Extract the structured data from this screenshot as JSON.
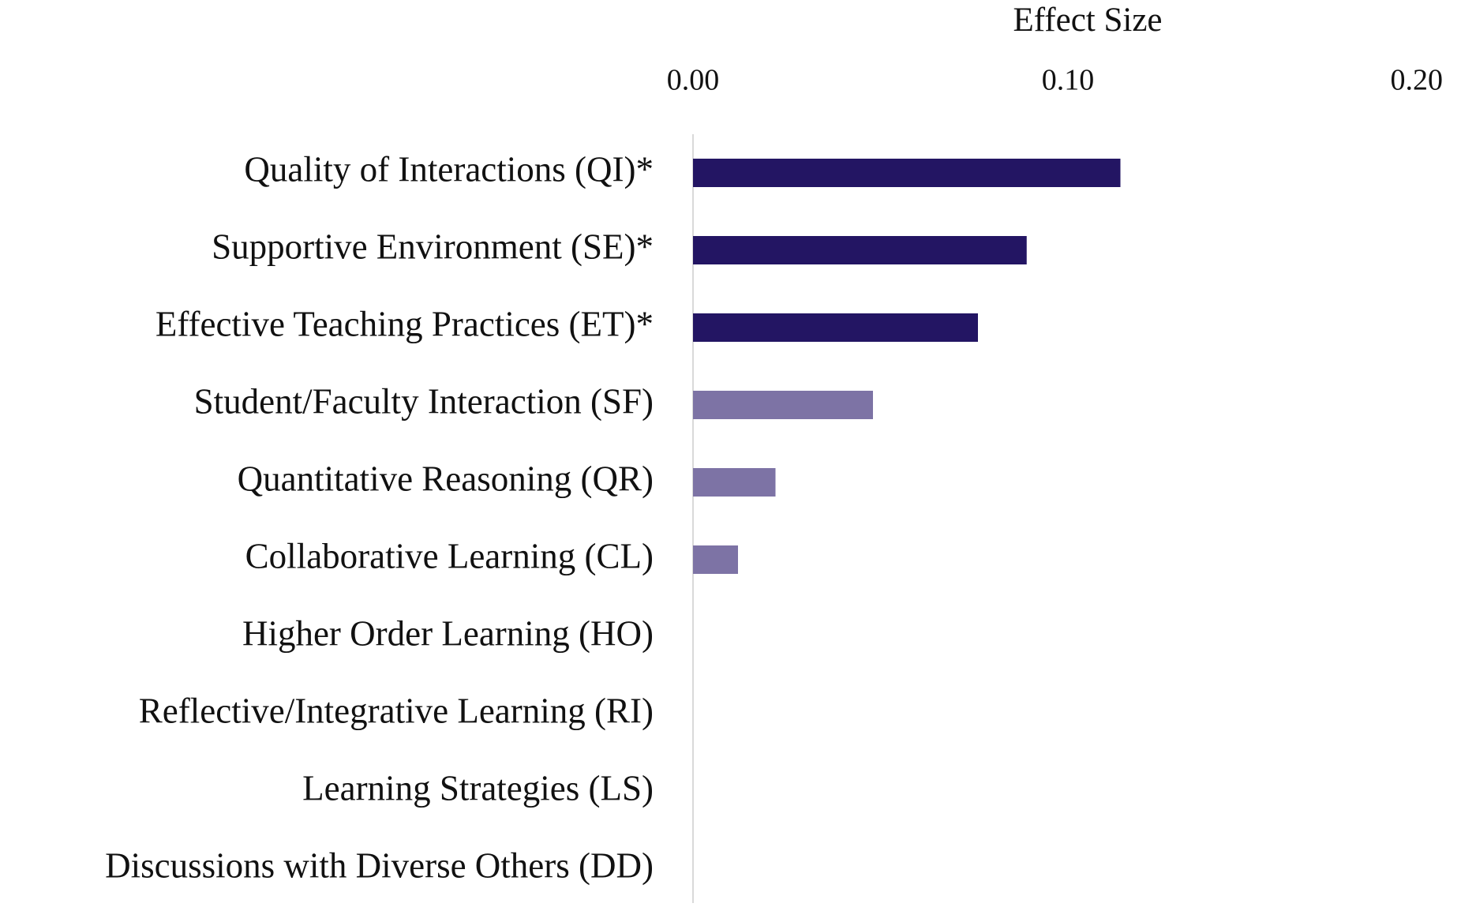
{
  "chart_data": {
    "type": "hbar",
    "x_axis_label": "Effect Size",
    "categories": [
      "Quality of Interactions (QI)*",
      "Supportive Environment (SE)*",
      "Effective Teaching Practices (ET)*",
      "Student/Faculty Interaction (SF)",
      "Quantitative Reasoning (QR)",
      "Collaborative Learning (CL)",
      "Higher Order Learning (HO)",
      "Reflective/Integrative Learning (RI)",
      "Learning Strategies (LS)",
      "Discussions with Diverse Others (DD)"
    ],
    "values": [
      0.114,
      0.089,
      0.076,
      0.048,
      0.022,
      0.012,
      0,
      0,
      0,
      0
    ],
    "colors": [
      "#231563",
      "#231563",
      "#231563",
      "#7d73a5",
      "#7d73a5",
      "#7d73a5",
      "#7d73a5",
      "#7d73a5",
      "#7d73a5",
      "#7d73a5"
    ],
    "xlim": [
      0,
      0.2
    ],
    "xticks": [
      {
        "value": 0,
        "label": "0.00"
      },
      {
        "value": 0.1,
        "label": "0.10"
      },
      {
        "value": 0.2,
        "label": "0.20"
      }
    ],
    "grid": false
  }
}
